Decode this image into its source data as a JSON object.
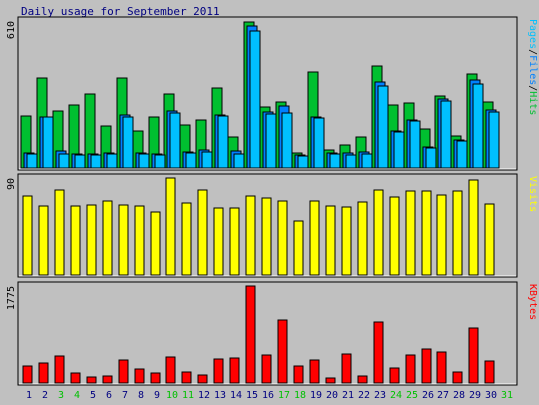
{
  "chart_data": {
    "type": "bar",
    "title": "Daily usage for September 2011",
    "categories": [
      "1",
      "2",
      "3",
      "4",
      "5",
      "6",
      "7",
      "8",
      "9",
      "10",
      "11",
      "12",
      "13",
      "14",
      "15",
      "16",
      "17",
      "18",
      "19",
      "20",
      "21",
      "22",
      "23",
      "24",
      "25",
      "26",
      "27",
      "28",
      "29",
      "30",
      "31"
    ],
    "weekend_days": [
      "3",
      "4",
      "10",
      "11",
      "17",
      "18",
      "24",
      "25",
      "31"
    ],
    "colors": {
      "hits": "#00c030",
      "files": "#0080ff",
      "pages": "#00c0ff",
      "visits": "#ffff00",
      "kbytes": "#ff0000",
      "weekday_label": "#000080",
      "weekend_label": "#00c000",
      "panel": "#c0c0c0",
      "frame": "#000000",
      "sep": "#808080"
    },
    "panels": [
      {
        "id": "hits-files-pages",
        "ymax_label": "610",
        "ymax": 610,
        "series": [
          {
            "name": "Hits",
            "values": [
              216,
              374,
              238,
              262,
              308,
              175,
              373,
              154,
              212,
              307,
              180,
              200,
              330,
              130,
              605,
              255,
              275,
              64,
              398,
              76,
              95,
              130,
              425,
              263,
              270,
              162,
              298,
              132,
              388,
              272,
              0
            ]
          },
          {
            "name": "Files",
            "values": [
              63,
              212,
              72,
              58,
              59,
              62,
              218,
              63,
              58,
              236,
              66,
              73,
              220,
              69,
              591,
              231,
              256,
              56,
              211,
              61,
              62,
              65,
              356,
              153,
              201,
              88,
              286,
              117,
              365,
              240,
              0
            ]
          },
          {
            "name": "Pages",
            "values": [
              60,
              210,
              59,
              54,
              55,
              57,
              210,
              59,
              53,
              228,
              63,
              68,
              216,
              60,
              568,
              225,
              229,
              50,
              207,
              57,
              56,
              60,
              340,
              151,
              196,
              85,
              280,
              113,
              348,
              232,
              0
            ]
          }
        ],
        "legend": [
          "Pages",
          "/",
          "Files",
          "/",
          "Hits"
        ]
      },
      {
        "id": "visits",
        "ymax_label": "90",
        "ymax": 90,
        "series": [
          {
            "name": "Visits",
            "values": [
              73,
              64,
              79,
              64,
              65,
              69,
              65,
              64,
              58,
              90,
              67,
              79,
              62,
              62,
              73,
              71,
              69,
              50,
              69,
              64,
              63,
              68,
              79,
              72,
              78,
              78,
              74,
              78,
              88,
              66,
              0
            ]
          }
        ],
        "legend": [
          "Visits"
        ]
      },
      {
        "id": "kbytes",
        "ymax_label": "1775",
        "ymax": 1775,
        "series": [
          {
            "name": "KBytes",
            "values": [
              310,
              370,
              490,
              180,
              110,
              120,
              430,
              250,
              180,
              470,
              200,
              150,
              440,
              460,
              1775,
              520,
              1160,
              310,
              430,
              100,
              530,
              130,
              1110,
              280,
              520,
              620,
              560,
              200,
              1010,
              400,
              0
            ]
          }
        ],
        "legend": [
          "KBytes"
        ]
      }
    ]
  }
}
